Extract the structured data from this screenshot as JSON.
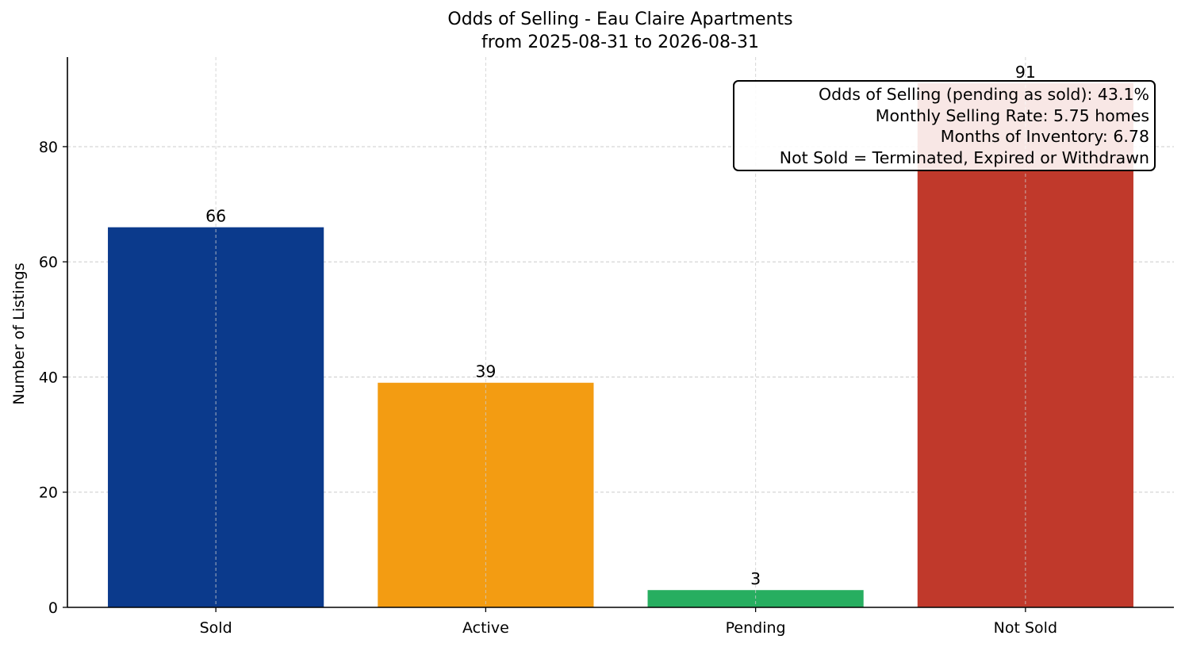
{
  "chart_data": {
    "type": "bar",
    "title": "Odds of Selling - Eau Claire Apartments",
    "subtitle": "from 2025-08-31 to 2026-08-31",
    "xlabel": "",
    "ylabel": "Number of Listings",
    "categories": [
      "Sold",
      "Active",
      "Pending",
      "Not Sold"
    ],
    "values": [
      66,
      39,
      3,
      91
    ],
    "data_labels": [
      "66",
      "39",
      "3",
      "91"
    ],
    "colors": [
      "#0b3a8c",
      "#f39c12",
      "#27ae60",
      "#c0392b"
    ],
    "ylim": [
      0,
      95.55
    ],
    "yticks": [
      0,
      20,
      40,
      60,
      80
    ],
    "grid": true,
    "legend": "none",
    "annotation": {
      "placement": "top-right",
      "lines": [
        "Odds of Selling (pending as sold): 43.1%",
        "Monthly Selling Rate: 5.75 homes",
        "Months of Inventory: 6.78",
        "Not Sold = Terminated, Expired or Withdrawn"
      ]
    }
  }
}
